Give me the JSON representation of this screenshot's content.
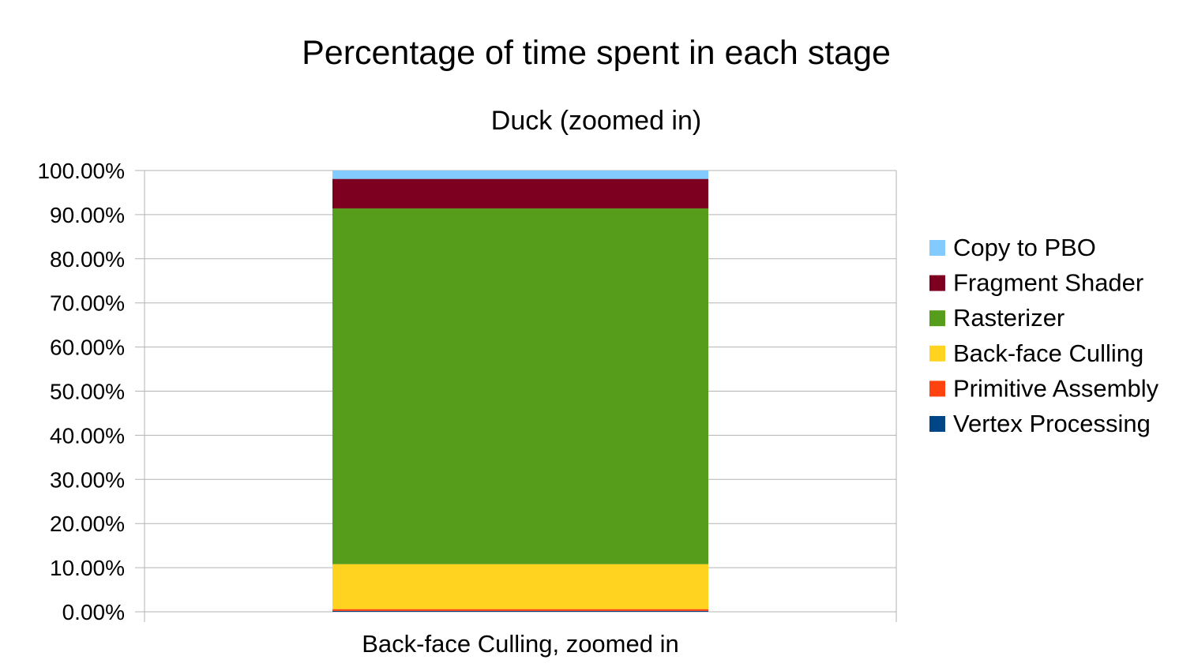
{
  "chart_data": {
    "type": "bar",
    "stacked": true,
    "title": "Percentage of time spent in each stage",
    "subtitle": "Duck (zoomed in)",
    "xlabel": "",
    "ylabel": "",
    "ylim": [
      0,
      100
    ],
    "y_tick_values": [
      0,
      10,
      20,
      30,
      40,
      50,
      60,
      70,
      80,
      90,
      100
    ],
    "y_tick_labels": [
      "0.00%",
      "10.00%",
      "20.00%",
      "30.00%",
      "40.00%",
      "50.00%",
      "60.00%",
      "70.00%",
      "80.00%",
      "90.00%",
      "100.00%"
    ],
    "grid": true,
    "legend_position": "right",
    "categories": [
      "Back-face Culling, zoomed in"
    ],
    "series": [
      {
        "name": "Vertex Processing",
        "color": "#004586",
        "values": [
          0.2
        ]
      },
      {
        "name": "Primitive Assembly",
        "color": "#ff420e",
        "values": [
          0.4
        ]
      },
      {
        "name": "Back-face Culling",
        "color": "#ffd320",
        "values": [
          10.2
        ]
      },
      {
        "name": "Rasterizer",
        "color": "#579d1c",
        "values": [
          80.6
        ]
      },
      {
        "name": "Fragment Shader",
        "color": "#7e0021",
        "values": [
          6.7
        ]
      },
      {
        "name": "Copy to PBO",
        "color": "#83caff",
        "values": [
          1.9
        ]
      }
    ]
  }
}
